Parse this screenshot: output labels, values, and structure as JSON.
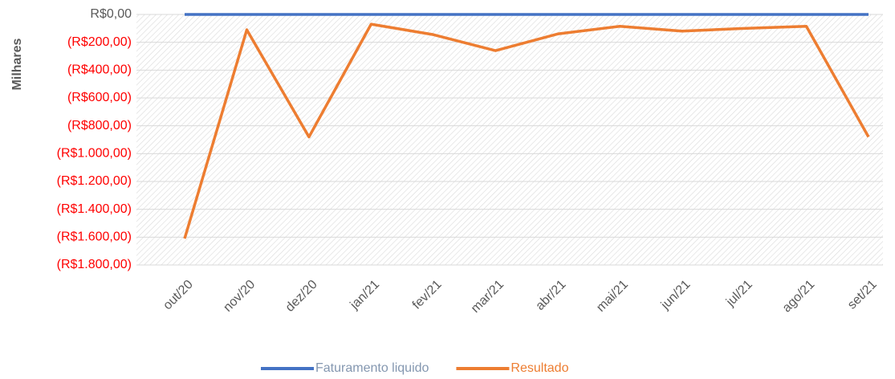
{
  "chart_data": {
    "type": "line",
    "y_label": "Milhares",
    "categories": [
      "out/20",
      "nov/20",
      "dez/20",
      "jan/21",
      "fev/21",
      "mar/21",
      "abr/21",
      "mai/21",
      "jun/21",
      "jul/21",
      "ago/21",
      "set/21"
    ],
    "series": [
      {
        "name": "Faturamento liquido",
        "color": "#4472c4",
        "values": [
          0,
          0,
          0,
          0,
          0,
          0,
          0,
          0,
          0,
          0,
          0,
          0
        ]
      },
      {
        "name": "Resultado",
        "color": "#ed7d31",
        "values": [
          -1610,
          -110,
          -880,
          -70,
          -145,
          -260,
          -140,
          -85,
          -120,
          -100,
          -85,
          -880
        ]
      }
    ],
    "ylim": [
      -1800,
      0
    ],
    "yticks": [
      {
        "value": 0,
        "label": "R$0,00"
      },
      {
        "value": -200,
        "label": "(R$200,00)"
      },
      {
        "value": -400,
        "label": "(R$400,00)"
      },
      {
        "value": -600,
        "label": "(R$600,00)"
      },
      {
        "value": -800,
        "label": "(R$800,00)"
      },
      {
        "value": -1000,
        "label": "(R$1.000,00)"
      },
      {
        "value": -1200,
        "label": "(R$1.200,00)"
      },
      {
        "value": -1400,
        "label": "(R$1.400,00)"
      },
      {
        "value": -1600,
        "label": "(R$1.600,00)"
      },
      {
        "value": -1800,
        "label": "(R$1.800,00)"
      }
    ],
    "negative_label_color": "#ff0000",
    "grid": true,
    "legend": "bottom"
  }
}
